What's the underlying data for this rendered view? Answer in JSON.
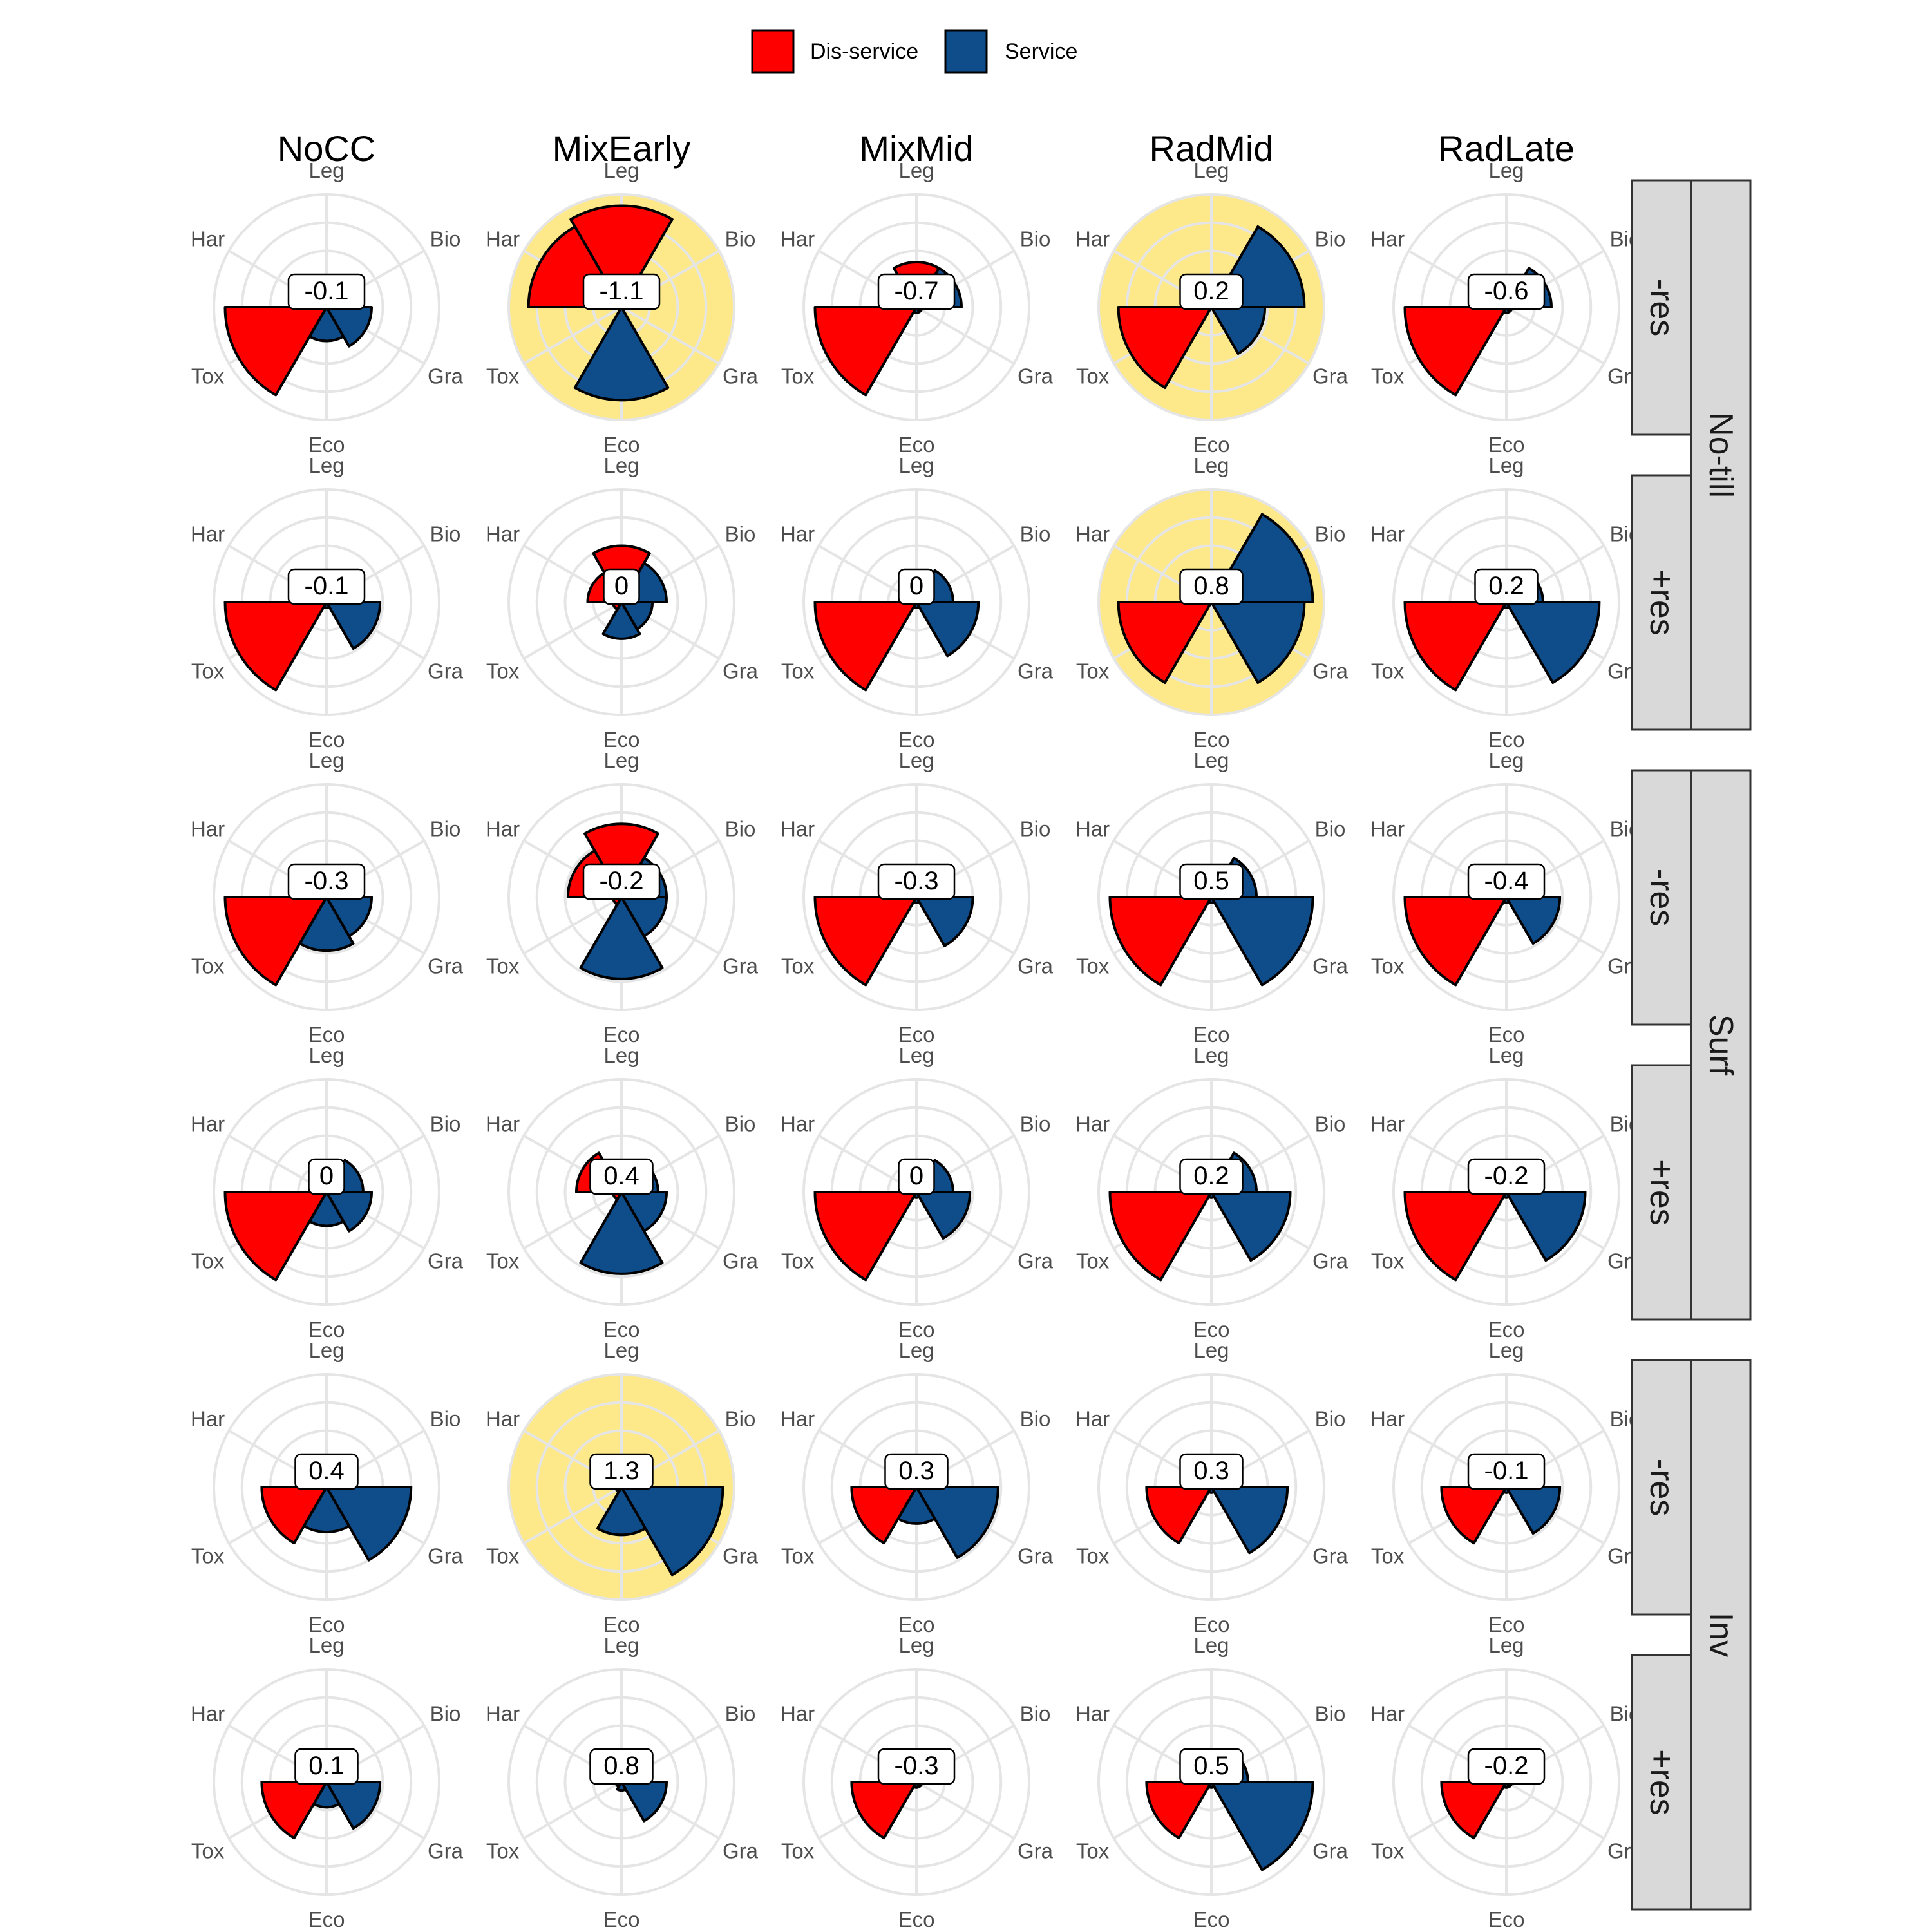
{
  "legend": {
    "items": [
      {
        "label": "Dis-service",
        "color": "#FF0000"
      },
      {
        "label": "Service",
        "color": "#0F4C8A"
      }
    ]
  },
  "colors": {
    "disservice": "#FF0000",
    "service": "#0F4C8A",
    "highlight": "#FDE98A",
    "grid": "#E5E5E5",
    "strip": "#D9D9D9"
  },
  "chart_data": {
    "type": "polar-bar",
    "title": "",
    "categories": [
      "Leg",
      "Bio",
      "Gra",
      "Eco",
      "Tox",
      "Har"
    ],
    "category_types": {
      "Leg": "Dis-service",
      "Bio": "Service",
      "Gra": "Service",
      "Eco": "Service",
      "Tox": "Dis-service",
      "Har": "Dis-service"
    },
    "rlim": [
      0,
      4
    ],
    "columns": [
      "NoCC",
      "MixEarly",
      "MixMid",
      "RadMid",
      "RadLate"
    ],
    "row_groups": [
      "No-till",
      "Surf",
      "Inv"
    ],
    "residue_levels": [
      "-res",
      "+res"
    ],
    "panels": [
      {
        "tillage": "No-till",
        "residue": "-res",
        "column": "NoCC",
        "score": "-0.1",
        "highlight": false,
        "values": [
          0,
          1.3,
          1.6,
          1.2,
          3.6,
          0
        ]
      },
      {
        "tillage": "No-till",
        "residue": "-res",
        "column": "MixEarly",
        "score": "-1.1",
        "highlight": true,
        "values": [
          3.6,
          0,
          0,
          3.3,
          0,
          3.3
        ]
      },
      {
        "tillage": "No-till",
        "residue": "-res",
        "column": "MixMid",
        "score": "-0.7",
        "highlight": false,
        "values": [
          1.6,
          1.6,
          0.2,
          0.2,
          3.6,
          0
        ]
      },
      {
        "tillage": "No-till",
        "residue": "-res",
        "column": "RadMid",
        "score": "0.2",
        "highlight": true,
        "values": [
          0,
          3.3,
          1.9,
          0,
          3.3,
          0
        ]
      },
      {
        "tillage": "No-till",
        "residue": "-res",
        "column": "RadLate",
        "score": "-0.6",
        "highlight": false,
        "values": [
          0,
          1.6,
          0.2,
          0.2,
          3.6,
          0
        ]
      },
      {
        "tillage": "No-till",
        "residue": "+res",
        "column": "NoCC",
        "score": "-0.1",
        "highlight": false,
        "values": [
          0,
          1.3,
          1.9,
          0.2,
          3.6,
          0
        ]
      },
      {
        "tillage": "No-till",
        "residue": "+res",
        "column": "MixEarly",
        "score": "0",
        "highlight": false,
        "values": [
          2.0,
          1.6,
          1.1,
          1.3,
          0.3,
          1.2
        ]
      },
      {
        "tillage": "No-till",
        "residue": "+res",
        "column": "MixMid",
        "score": "0",
        "highlight": false,
        "values": [
          0,
          1.3,
          2.2,
          0.2,
          3.6,
          0
        ]
      },
      {
        "tillage": "No-till",
        "residue": "+res",
        "column": "RadMid",
        "score": "0.8",
        "highlight": true,
        "values": [
          0,
          3.6,
          3.3,
          0,
          3.3,
          0
        ]
      },
      {
        "tillage": "No-till",
        "residue": "+res",
        "column": "RadLate",
        "score": "0.2",
        "highlight": false,
        "values": [
          0,
          1.3,
          3.3,
          0.2,
          3.6,
          0
        ]
      },
      {
        "tillage": "Surf",
        "residue": "-res",
        "column": "NoCC",
        "score": "-0.3",
        "highlight": false,
        "values": [
          0,
          1.3,
          1.6,
          1.9,
          3.6,
          1.2
        ]
      },
      {
        "tillage": "Surf",
        "residue": "-res",
        "column": "MixEarly",
        "score": "-0.2",
        "highlight": false,
        "values": [
          2.6,
          1.6,
          1.6,
          2.9,
          0.3,
          1.9
        ]
      },
      {
        "tillage": "Surf",
        "residue": "-res",
        "column": "MixMid",
        "score": "-0.3",
        "highlight": false,
        "values": [
          0,
          1.3,
          2.0,
          0.2,
          3.6,
          0
        ]
      },
      {
        "tillage": "Surf",
        "residue": "-res",
        "column": "RadMid",
        "score": "0.5",
        "highlight": false,
        "values": [
          0,
          1.6,
          3.6,
          0.2,
          3.6,
          0
        ]
      },
      {
        "tillage": "Surf",
        "residue": "-res",
        "column": "RadLate",
        "score": "-0.4",
        "highlight": false,
        "values": [
          0,
          1.3,
          1.9,
          0.2,
          3.6,
          0
        ]
      },
      {
        "tillage": "Surf",
        "residue": "+res",
        "column": "NoCC",
        "score": "0",
        "highlight": false,
        "values": [
          0,
          1.3,
          1.6,
          1.2,
          3.6,
          0.3
        ]
      },
      {
        "tillage": "Surf",
        "residue": "+res",
        "column": "MixEarly",
        "score": "0.4",
        "highlight": false,
        "values": [
          0.3,
          1.3,
          1.6,
          2.9,
          0.3,
          1.6
        ]
      },
      {
        "tillage": "Surf",
        "residue": "+res",
        "column": "MixMid",
        "score": "0",
        "highlight": false,
        "values": [
          0,
          1.3,
          1.9,
          0.2,
          3.6,
          0
        ]
      },
      {
        "tillage": "Surf",
        "residue": "+res",
        "column": "RadMid",
        "score": "0.2",
        "highlight": false,
        "values": [
          0,
          1.6,
          2.8,
          0.2,
          3.6,
          0
        ]
      },
      {
        "tillage": "Surf",
        "residue": "+res",
        "column": "RadLate",
        "score": "-0.2",
        "highlight": false,
        "values": [
          0,
          1.3,
          2.8,
          0.2,
          3.6,
          0
        ]
      },
      {
        "tillage": "Inv",
        "residue": "-res",
        "column": "NoCC",
        "score": "0.4",
        "highlight": false,
        "values": [
          0,
          0.3,
          3.0,
          1.6,
          2.3,
          0
        ]
      },
      {
        "tillage": "Inv",
        "residue": "-res",
        "column": "MixEarly",
        "score": "1.3",
        "highlight": true,
        "values": [
          0,
          0.3,
          3.6,
          1.7,
          0.2,
          0.5
        ]
      },
      {
        "tillage": "Inv",
        "residue": "-res",
        "column": "MixMid",
        "score": "0.3",
        "highlight": false,
        "values": [
          0,
          0.3,
          2.9,
          1.3,
          2.3,
          0
        ]
      },
      {
        "tillage": "Inv",
        "residue": "-res",
        "column": "RadMid",
        "score": "0.3",
        "highlight": false,
        "values": [
          0,
          0.3,
          2.7,
          0.2,
          2.3,
          0
        ]
      },
      {
        "tillage": "Inv",
        "residue": "-res",
        "column": "RadLate",
        "score": "-0.1",
        "highlight": false,
        "values": [
          0,
          0.3,
          1.9,
          0.2,
          2.3,
          0
        ]
      },
      {
        "tillage": "Inv",
        "residue": "+res",
        "column": "NoCC",
        "score": "0.1",
        "highlight": false,
        "values": [
          0,
          0.3,
          1.9,
          0.9,
          2.3,
          0
        ]
      },
      {
        "tillage": "Inv",
        "residue": "+res",
        "column": "MixEarly",
        "score": "0.8",
        "highlight": false,
        "values": [
          0,
          0.3,
          1.6,
          0.3,
          0.2,
          0.3
        ]
      },
      {
        "tillage": "Inv",
        "residue": "+res",
        "column": "MixMid",
        "score": "-0.3",
        "highlight": false,
        "values": [
          0,
          0.3,
          0.2,
          0.2,
          2.3,
          0
        ]
      },
      {
        "tillage": "Inv",
        "residue": "+res",
        "column": "RadMid",
        "score": "0.5",
        "highlight": false,
        "values": [
          0,
          1.3,
          3.6,
          0.2,
          2.3,
          0
        ]
      },
      {
        "tillage": "Inv",
        "residue": "+res",
        "column": "RadLate",
        "score": "-0.2",
        "highlight": false,
        "values": [
          0,
          0.3,
          0.2,
          0.2,
          2.3,
          0
        ]
      }
    ]
  }
}
